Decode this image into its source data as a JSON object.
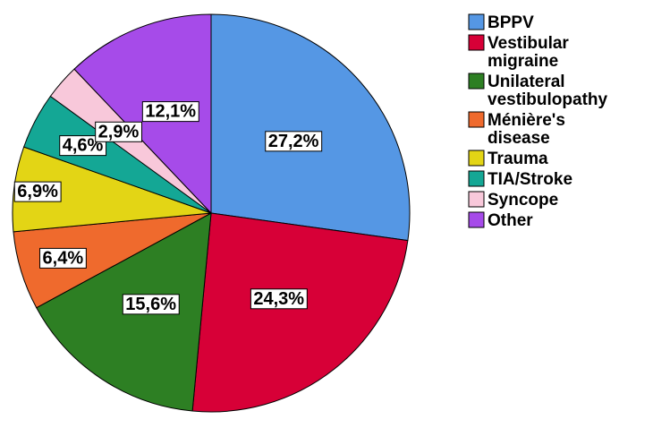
{
  "chart_data": {
    "type": "pie",
    "slices": [
      {
        "label": "BPPV",
        "value": 27.2,
        "value_label": "27,2%",
        "color": "#5597e4"
      },
      {
        "label": "Vestibular migraine",
        "value": 24.3,
        "value_label": "24,3%",
        "color": "#d70037"
      },
      {
        "label": "Unilateral vestibulopathy",
        "value": 15.6,
        "value_label": "15,6%",
        "color": "#2d7f23"
      },
      {
        "label": "Ménière's disease",
        "value": 6.4,
        "value_label": "6,4%",
        "color": "#ef6a2d"
      },
      {
        "label": "Trauma",
        "value": 6.9,
        "value_label": "6,9%",
        "color": "#e3d515"
      },
      {
        "label": "TIA/Stroke",
        "value": 4.6,
        "value_label": "4,6%",
        "color": "#14a795"
      },
      {
        "label": "Syncope",
        "value": 2.9,
        "value_label": "2,9%",
        "color": "#f8c8da"
      },
      {
        "label": "Other",
        "value": 12.1,
        "value_label": "12,1%",
        "color": "#a64be9"
      }
    ],
    "legend": {
      "placement": "top-right",
      "entries": [
        [
          "BPPV"
        ],
        [
          "Vestibular",
          "migraine"
        ],
        [
          "Unilateral",
          "vestibulopathy"
        ],
        [
          "Ménière's",
          "disease"
        ],
        [
          "Trauma"
        ],
        [
          "TIA/Stroke"
        ],
        [
          "Syncope"
        ],
        [
          "Other"
        ]
      ]
    }
  }
}
